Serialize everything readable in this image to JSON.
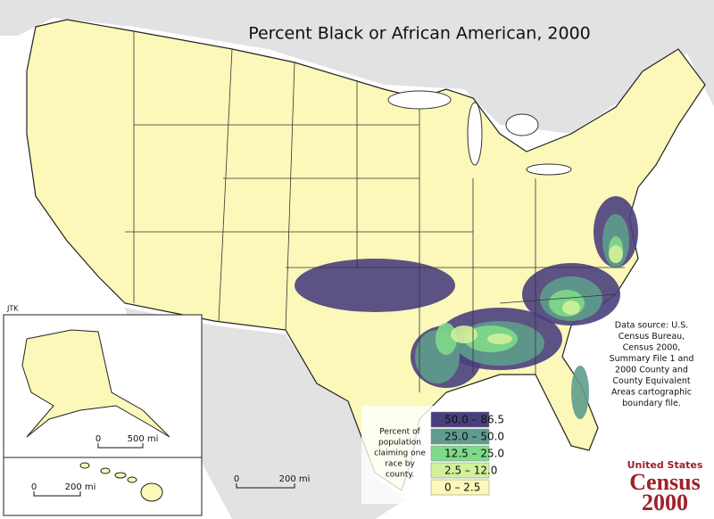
{
  "title": "Percent Black or African American, 2000",
  "credit": "JTK",
  "source": [
    "Data source:  U.S.",
    "Census Bureau,",
    "Census 2000,",
    "Summary File 1 and",
    "2000 County and",
    "County Equivalent",
    "Areas cartographic",
    "boundary file."
  ],
  "legend": {
    "caption": [
      "Percent of",
      "population",
      "claiming one",
      "race by",
      "county."
    ],
    "items": [
      {
        "label": "50.0 – 86.5",
        "color": "#4a3f7e"
      },
      {
        "label": "25.0 – 50.0",
        "color": "#5e9c8c"
      },
      {
        "label": "12.5 – 25.0",
        "color": "#7fd98a"
      },
      {
        "label": "2.5 – 12.0",
        "color": "#d3f09a"
      },
      {
        "label": "0 – 2.5",
        "color": "#fbf8b9"
      }
    ]
  },
  "scale_bars": {
    "main": {
      "start": "0",
      "end": "200 mi"
    },
    "alaska": {
      "start": "0",
      "end": "500 mi"
    },
    "hawaii": {
      "start": "0",
      "end": "200 mi"
    }
  },
  "logo": {
    "line1": "United States",
    "line2": "Census",
    "line3": "2000"
  }
}
